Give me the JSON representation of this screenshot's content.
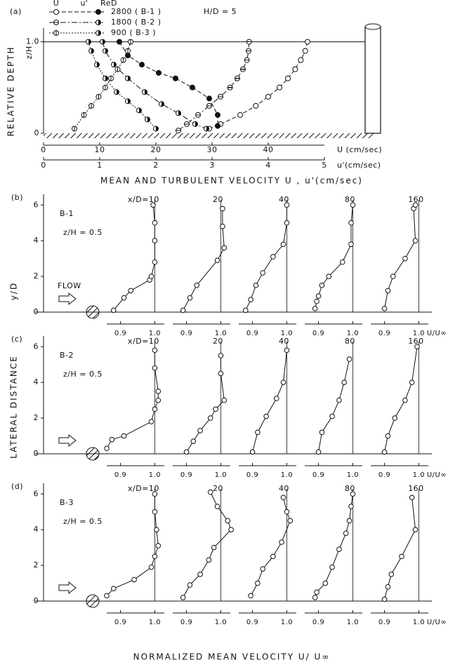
{
  "chart_data": [
    {
      "type": "line",
      "panel": "(a)",
      "annotation": "H/D = 5",
      "legend_headers": [
        "U",
        "u'",
        "ReD"
      ],
      "ylabel": "RELATIVE DEPTH",
      "ylabel2": "z/H",
      "xlabel": "MEAN AND TURBULENT VELOCITY    U , u'(cm/sec)",
      "x_axis_label": "U (cm/sec)",
      "x2_axis_label": "u'(cm/sec)",
      "xlim": [
        0,
        50
      ],
      "xticks": [
        0,
        10,
        20,
        30,
        40
      ],
      "x2lim": [
        0,
        5
      ],
      "x2ticks": [
        0,
        1,
        2,
        3,
        4,
        5
      ],
      "ylim": [
        0,
        1.15
      ],
      "yticks": [
        0,
        {
          "value": 1,
          "label": "1.0"
        }
      ],
      "series": [
        {
          "name": "2800 ( B-1 )",
          "dash": "6 3",
          "U_marker": "open",
          "up_marker": "filled",
          "U": {
            "x": [
              47,
              46.6,
              45.8,
              44.8,
              43.5,
              42,
              40,
              37.8,
              35,
              31.5,
              29.5
            ],
            "z": [
              1,
              0.9,
              0.8,
              0.7,
              0.6,
              0.5,
              0.4,
              0.3,
              0.2,
              0.1,
              0.05
            ]
          },
          "u_prime": {
            "x": [
              1.35,
              1.5,
              1.75,
              2.05,
              2.35,
              2.65,
              2.95,
              3.1,
              3.1
            ],
            "z": [
              1,
              0.85,
              0.75,
              0.66,
              0.6,
              0.5,
              0.38,
              0.2,
              0.08
            ]
          }
        },
        {
          "name": "1800 ( B-2 )",
          "dash": "8 3 2 3",
          "U_marker": "hbar",
          "up_marker": "half",
          "U": {
            "x": [
              36.6,
              36.5,
              36.2,
              35.5,
              34.5,
              33.2,
              31.5,
              29.5,
              27.5,
              25.5,
              24
            ],
            "z": [
              1,
              0.9,
              0.8,
              0.7,
              0.6,
              0.5,
              0.4,
              0.3,
              0.2,
              0.1,
              0.03
            ]
          },
          "u_prime": {
            "x": [
              1.05,
              1.1,
              1.25,
              1.5,
              1.8,
              2.1,
              2.4,
              2.7,
              2.9
            ],
            "z": [
              1,
              0.9,
              0.75,
              0.6,
              0.45,
              0.32,
              0.22,
              0.1,
              0.05
            ]
          }
        },
        {
          "name": "900 ( B-3 )",
          "dash": "2 2",
          "U_marker": "vbar",
          "up_marker": "half",
          "U": {
            "x": [
              15.5,
              15,
              14.2,
              13.2,
              12,
              11,
              9.8,
              8.5,
              7.2,
              5.5
            ],
            "z": [
              1,
              0.9,
              0.8,
              0.7,
              0.6,
              0.5,
              0.4,
              0.3,
              0.2,
              0.05
            ]
          },
          "u_prime": {
            "x": [
              0.8,
              0.85,
              0.95,
              1.1,
              1.3,
              1.5,
              1.7,
              1.85,
              2.0
            ],
            "z": [
              1,
              0.9,
              0.75,
              0.6,
              0.45,
              0.35,
              0.25,
              0.15,
              0.05
            ]
          }
        }
      ]
    },
    {
      "type": "profiles",
      "panel": "(b)",
      "case": "B-1",
      "condition": "z/H = 0.5",
      "annotation": "FLOW",
      "ylabel": "y/D",
      "xlabel": "U/U∞",
      "ylim": [
        0,
        6.6
      ],
      "yticks": [
        0,
        2,
        4,
        6
      ],
      "xlim": [
        0.86,
        1.04
      ],
      "xticks": [
        0.9,
        {
          "value": 1,
          "label": "1.0"
        }
      ],
      "profiles": [
        {
          "title": "x/D=10",
          "y": [
            0.1,
            0.8,
            1.2,
            1.8,
            2.0,
            2.8,
            4.0,
            5.0,
            6.0
          ],
          "values": [
            0.88,
            0.91,
            0.93,
            0.985,
            0.99,
            1.0,
            1.0,
            1.0,
            0.995
          ]
        },
        {
          "title": "20",
          "y": [
            0.1,
            0.8,
            1.5,
            2.9,
            3.6,
            4.8,
            5.8
          ],
          "values": [
            0.89,
            0.91,
            0.93,
            0.99,
            1.01,
            1.005,
            1.005
          ]
        },
        {
          "title": "40",
          "y": [
            0.1,
            0.7,
            1.5,
            2.2,
            3.1,
            3.8,
            5.0,
            6.0
          ],
          "values": [
            0.88,
            0.895,
            0.91,
            0.93,
            0.96,
            0.99,
            1.0,
            1.0
          ]
        },
        {
          "title": "80",
          "y": [
            0.2,
            0.6,
            0.9,
            1.5,
            2.0,
            2.8,
            3.8,
            5.0,
            6.0
          ],
          "values": [
            0.89,
            0.895,
            0.9,
            0.91,
            0.93,
            0.97,
            0.995,
            0.995,
            1.0
          ]
        },
        {
          "title": "160",
          "y": [
            0.2,
            1.2,
            2.0,
            3.0,
            4.0,
            5.8,
            6.0
          ],
          "values": [
            0.9,
            0.91,
            0.925,
            0.96,
            0.99,
            0.985,
            0.99
          ]
        }
      ]
    },
    {
      "type": "profiles",
      "panel": "(c)",
      "case": "B-2",
      "condition": "z/H = 0.5",
      "xlabel": "U/U∞",
      "ylim": [
        0,
        6.6
      ],
      "yticks": [
        0,
        2,
        4,
        6
      ],
      "xlim": [
        0.86,
        1.04
      ],
      "xticks": [
        0.9,
        {
          "value": 1,
          "label": "1.0"
        }
      ],
      "profiles": [
        {
          "title": "x/D=10",
          "y": [
            0.3,
            0.8,
            1.0,
            1.8,
            2.5,
            3.0,
            3.5,
            4.8,
            5.8
          ],
          "values": [
            0.86,
            0.875,
            0.91,
            0.99,
            1.0,
            1.01,
            1.01,
            1.0,
            1.0
          ]
        },
        {
          "title": "20",
          "y": [
            0.1,
            0.7,
            1.3,
            2.0,
            2.5,
            3.0,
            4.5,
            5.5
          ],
          "values": [
            0.9,
            0.92,
            0.94,
            0.97,
            0.985,
            1.01,
            1.0,
            1.0
          ]
        },
        {
          "title": "40",
          "y": [
            0.1,
            1.2,
            2.1,
            3.1,
            4.0,
            5.8
          ],
          "values": [
            0.9,
            0.915,
            0.94,
            0.97,
            0.99,
            1.0
          ]
        },
        {
          "title": "80",
          "y": [
            0.1,
            1.2,
            2.1,
            3.0,
            4.0,
            5.3
          ],
          "values": [
            0.9,
            0.91,
            0.94,
            0.96,
            0.975,
            0.99
          ]
        },
        {
          "title": "160",
          "y": [
            0.1,
            1.0,
            2.0,
            3.0,
            4.0,
            6.0
          ],
          "values": [
            0.9,
            0.91,
            0.93,
            0.96,
            0.98,
            0.995
          ]
        }
      ]
    },
    {
      "type": "profiles",
      "panel": "(d)",
      "case": "B-3",
      "condition": "z/H = 0.5",
      "xlabel": "U/U∞",
      "ylim": [
        0,
        6.6
      ],
      "yticks": [
        0,
        2,
        4,
        6
      ],
      "xlim": [
        0.86,
        1.04
      ],
      "xticks": [
        0.9,
        {
          "value": 1,
          "label": "1.0"
        }
      ],
      "profiles": [
        {
          "title": "x/D=10",
          "y": [
            0.3,
            0.7,
            1.2,
            1.9,
            2.5,
            3.1,
            4.0,
            5.0,
            6.0
          ],
          "values": [
            0.86,
            0.88,
            0.94,
            0.99,
            1.0,
            1.01,
            1.005,
            1.0,
            1.0
          ]
        },
        {
          "title": "20",
          "y": [
            0.2,
            0.9,
            1.5,
            2.3,
            3.0,
            4.0,
            4.5,
            5.3,
            6.1
          ],
          "values": [
            0.89,
            0.91,
            0.94,
            0.965,
            0.98,
            1.03,
            1.02,
            0.99,
            0.97
          ]
        },
        {
          "title": "40",
          "y": [
            0.3,
            1.0,
            1.8,
            2.5,
            3.3,
            4.5,
            5.0,
            5.8
          ],
          "values": [
            0.895,
            0.915,
            0.93,
            0.96,
            0.985,
            1.01,
            1.0,
            0.99
          ]
        },
        {
          "title": "80",
          "y": [
            0.2,
            0.5,
            1.0,
            1.9,
            2.9,
            3.8,
            4.5,
            5.3,
            6.0
          ],
          "values": [
            0.89,
            0.895,
            0.92,
            0.94,
            0.96,
            0.98,
            0.99,
            0.995,
            1.0
          ]
        },
        {
          "title": "160",
          "y": [
            0.1,
            0.8,
            1.5,
            2.5,
            4.0,
            5.8
          ],
          "values": [
            0.9,
            0.91,
            0.92,
            0.95,
            0.99,
            0.98
          ]
        }
      ]
    }
  ],
  "figure_labels": {
    "lateral": "LATERAL DISTANCE",
    "bottom": "NORMALIZED MEAN VELOCITY    U/ U∞"
  }
}
